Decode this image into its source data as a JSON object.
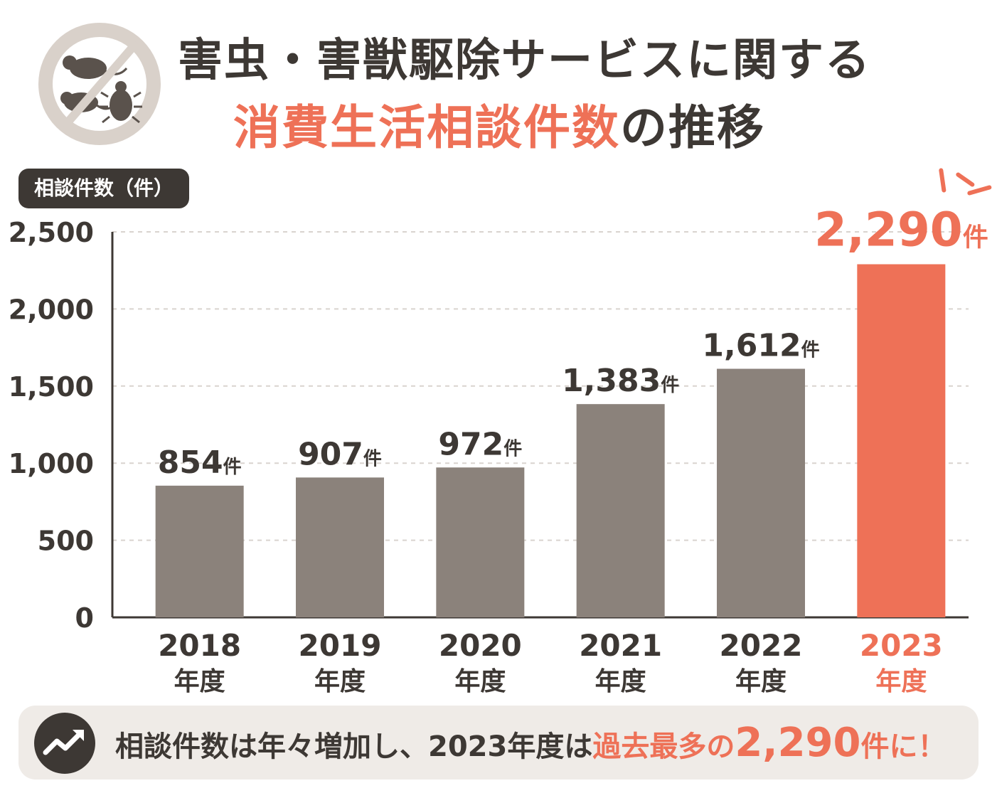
{
  "title": {
    "line1": "害虫・害獣駆除サービスに関する",
    "line2_accent": "消費生活相談件数",
    "line2_rest": "の推移"
  },
  "colors": {
    "bar": "#8b827b",
    "highlight": "#ee7157",
    "text": "#3d3834",
    "grid": "#d9d4cf",
    "footer_bg": "#efebe7"
  },
  "icons": {
    "logo": "no-pests-icon",
    "trend": "trending-up-icon"
  },
  "chart_data": {
    "type": "bar",
    "ylabel": "相談件数（件）",
    "ylim": [
      0,
      2500
    ],
    "yticks": [
      "0",
      "500",
      "1,000",
      "1,500",
      "2,000",
      "2,500"
    ],
    "ytick_values": [
      0,
      500,
      1000,
      1500,
      2000,
      2500
    ],
    "categories": [
      "2018",
      "2019",
      "2020",
      "2021",
      "2022",
      "2023"
    ],
    "category_suffix": "年度",
    "values": [
      854,
      907,
      972,
      1383,
      1612,
      2290
    ],
    "value_labels": [
      "854",
      "907",
      "972",
      "1,383",
      "1,612",
      "2,290"
    ],
    "value_unit": "件",
    "highlight_index": 5,
    "grid": true
  },
  "footer": {
    "text_main": "相談件数は年々増加し、2023年度は",
    "text_accent": "過去最多の",
    "text_big": "2,290",
    "text_unit": "件に！"
  }
}
